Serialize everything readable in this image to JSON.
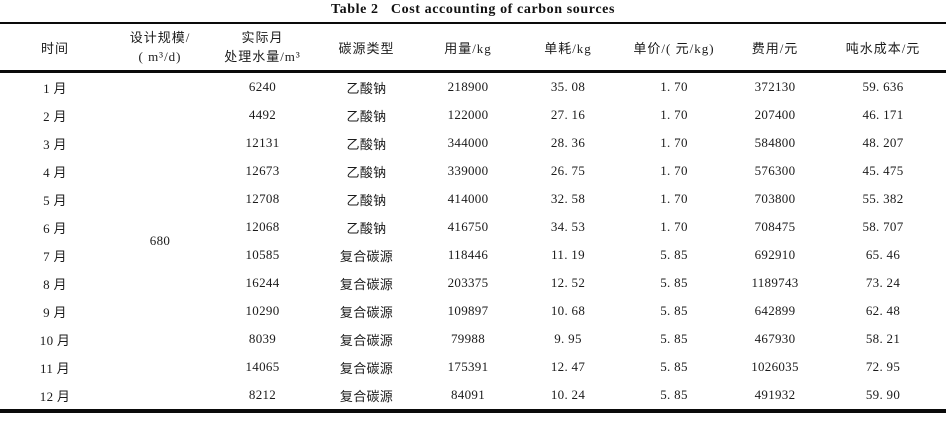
{
  "title": "Table 2   Cost accounting of carbon sources",
  "header": {
    "time": "时间",
    "design_scale_l1": "设计规模/",
    "design_scale_l2": "( m³/d)",
    "actual_volume_l1": "实际月",
    "actual_volume_l2": "处理水量/m³",
    "carbon_type": "碳源类型",
    "usage": "用量/kg",
    "unit_consumption": "单耗/kg",
    "unit_price": "单价/( 元/kg)",
    "cost": "费用/元",
    "ton_water_cost": "吨水成本/元"
  },
  "design_scale_value": "680",
  "rows": [
    {
      "month": "1 月",
      "volume": "6240",
      "type": "乙酸钠",
      "usage": "218900",
      "unit_consumption": "35. 08",
      "unit_price": "1. 70",
      "cost": "372130",
      "ton_cost": "59. 636"
    },
    {
      "month": "2 月",
      "volume": "4492",
      "type": "乙酸钠",
      "usage": "122000",
      "unit_consumption": "27. 16",
      "unit_price": "1. 70",
      "cost": "207400",
      "ton_cost": "46. 171"
    },
    {
      "month": "3 月",
      "volume": "12131",
      "type": "乙酸钠",
      "usage": "344000",
      "unit_consumption": "28. 36",
      "unit_price": "1. 70",
      "cost": "584800",
      "ton_cost": "48. 207"
    },
    {
      "month": "4 月",
      "volume": "12673",
      "type": "乙酸钠",
      "usage": "339000",
      "unit_consumption": "26. 75",
      "unit_price": "1. 70",
      "cost": "576300",
      "ton_cost": "45. 475"
    },
    {
      "month": "5 月",
      "volume": "12708",
      "type": "乙酸钠",
      "usage": "414000",
      "unit_consumption": "32. 58",
      "unit_price": "1. 70",
      "cost": "703800",
      "ton_cost": "55. 382"
    },
    {
      "month": "6 月",
      "volume": "12068",
      "type": "乙酸钠",
      "usage": "416750",
      "unit_consumption": "34. 53",
      "unit_price": "1. 70",
      "cost": "708475",
      "ton_cost": "58. 707"
    },
    {
      "month": "7 月",
      "volume": "10585",
      "type": "复合碳源",
      "usage": "118446",
      "unit_consumption": "11. 19",
      "unit_price": "5. 85",
      "cost": "692910",
      "ton_cost": "65. 46"
    },
    {
      "month": "8 月",
      "volume": "16244",
      "type": "复合碳源",
      "usage": "203375",
      "unit_consumption": "12. 52",
      "unit_price": "5. 85",
      "cost": "1189743",
      "ton_cost": "73. 24"
    },
    {
      "month": "9 月",
      "volume": "10290",
      "type": "复合碳源",
      "usage": "109897",
      "unit_consumption": "10. 68",
      "unit_price": "5. 85",
      "cost": "642899",
      "ton_cost": "62. 48"
    },
    {
      "month": "10 月",
      "volume": "8039",
      "type": "复合碳源",
      "usage": "79988",
      "unit_consumption": "9. 95",
      "unit_price": "5. 85",
      "cost": "467930",
      "ton_cost": "58. 21"
    },
    {
      "month": "11 月",
      "volume": "14065",
      "type": "复合碳源",
      "usage": "175391",
      "unit_consumption": "12. 47",
      "unit_price": "5. 85",
      "cost": "1026035",
      "ton_cost": "72. 95"
    },
    {
      "month": "12 月",
      "volume": "8212",
      "type": "复合碳源",
      "usage": "84091",
      "unit_consumption": "10. 24",
      "unit_price": "5. 85",
      "cost": "491932",
      "ton_cost": "59. 90"
    }
  ]
}
